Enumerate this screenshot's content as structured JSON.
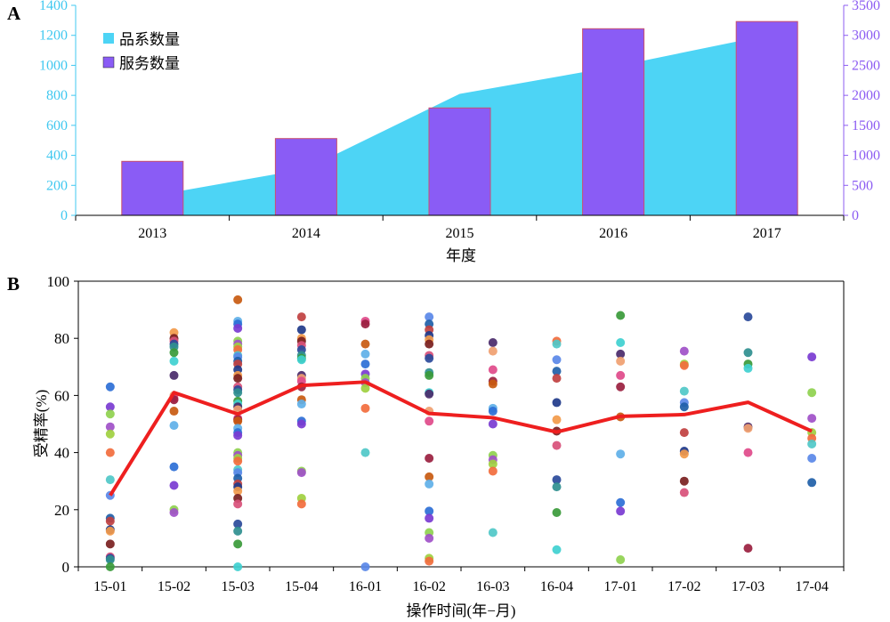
{
  "chart_data": [
    {
      "panel_label": "A",
      "type": "bar",
      "categories": [
        "2013",
        "2014",
        "2015",
        "2016",
        "2017"
      ],
      "xlabel": "年度",
      "y_left": {
        "ylim": [
          0,
          1400
        ],
        "ticks": [
          0,
          200,
          400,
          600,
          800,
          1000,
          1200,
          1400
        ],
        "color": "#40c8f0"
      },
      "y_right": {
        "ylim": [
          0,
          3500
        ],
        "ticks": [
          0,
          500,
          1000,
          1500,
          2000,
          2500,
          3000,
          3500
        ],
        "color": "#8c5cf2"
      },
      "series": [
        {
          "name": "品系数量",
          "type": "area",
          "axis": "left",
          "color": "#4dd4f5",
          "values": [
            130,
            310,
            810,
            990,
            1200
          ]
        },
        {
          "name": "服务数量",
          "type": "bar",
          "axis": "right",
          "color": "#8a5cf5",
          "edge_color": "#c8506e",
          "values": [
            900,
            1280,
            1790,
            3110,
            3230
          ]
        }
      ],
      "legend_position": "top-left"
    },
    {
      "panel_label": "B",
      "type": "scatter",
      "categories": [
        "15-01",
        "15-02",
        "15-03",
        "15-04",
        "16-01",
        "16-02",
        "16-03",
        "16-04",
        "17-01",
        "17-02",
        "17-03",
        "17-04"
      ],
      "xlabel": "操作时间(年−月)",
      "ylabel": "受精率(%)",
      "ylim": [
        0,
        100
      ],
      "yticks": [
        0,
        20,
        40,
        60,
        80,
        100
      ],
      "mean_line": {
        "color": "#ee1f1f",
        "values": [
          25,
          61,
          53.5,
          63.5,
          64.7,
          53.7,
          52.2,
          47.2,
          52.7,
          53.3,
          57.6,
          47.5
        ]
      },
      "points": [
        [
          63,
          56,
          53.5,
          49,
          46.5,
          40,
          30.5,
          25,
          17,
          16,
          13,
          12.5,
          8,
          3.5,
          3,
          2.5,
          0
        ],
        [
          82,
          80,
          79,
          78,
          77,
          75,
          72,
          67,
          60,
          59,
          58.5,
          54.5,
          49.5,
          35,
          28.5,
          20,
          19
        ],
        [
          93.5,
          86,
          85,
          83.5,
          79,
          78,
          77,
          76,
          74,
          73.5,
          72,
          71,
          69,
          67,
          66,
          63,
          62,
          61,
          58,
          57,
          56,
          55,
          52,
          51.5,
          51,
          48.5,
          47,
          46,
          40,
          39,
          38,
          37,
          34,
          33,
          31,
          29,
          28,
          26.5,
          24,
          22,
          15,
          12.5,
          8,
          0
        ],
        [
          87.5,
          83,
          80,
          79,
          77.5,
          76,
          74,
          73,
          72.5,
          67,
          66,
          65,
          63,
          58.5,
          57,
          51,
          50,
          33.5,
          33,
          24,
          22
        ],
        [
          86,
          85,
          78,
          74.5,
          71,
          67.5,
          66,
          64.5,
          62.5,
          55.5,
          40,
          0
        ],
        [
          87.5,
          85,
          83,
          81,
          79.5,
          78,
          74,
          73,
          68,
          67,
          61,
          60.5,
          54.5,
          51,
          38,
          31.5,
          29,
          19.5,
          17,
          12,
          10,
          3,
          2
        ],
        [
          78.5,
          75.5,
          69,
          65,
          64,
          55.5,
          54.5,
          50,
          39,
          37.5,
          36,
          33.5,
          12
        ],
        [
          79,
          78,
          72.5,
          68.5,
          66,
          57.5,
          51.5,
          47.5,
          42.5,
          30.5,
          28,
          19,
          6
        ],
        [
          88,
          78.5,
          74.5,
          72,
          67,
          63,
          52.5,
          39.5,
          22.5,
          19.5,
          2.5
        ],
        [
          75.5,
          71,
          70.5,
          61.5,
          57.5,
          56,
          47,
          40.5,
          39.5,
          30,
          26
        ],
        [
          87.5,
          75,
          71,
          69.5,
          49,
          48.5,
          40,
          6.5
        ],
        [
          73.5,
          61,
          52,
          47,
          45,
          43,
          38,
          29.5
        ]
      ]
    }
  ]
}
